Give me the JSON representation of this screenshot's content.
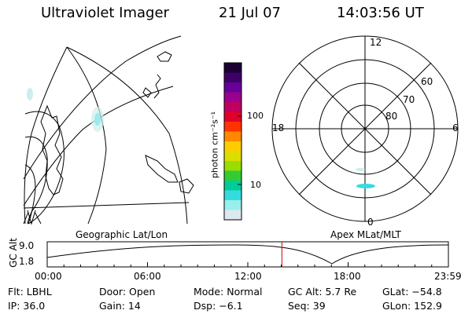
{
  "header": {
    "title": "Ultraviolet Imager",
    "date": "21 Jul 07",
    "time": "14:03:56 UT"
  },
  "geo_map": {
    "label": "Geographic Lat/Lon"
  },
  "colorbar": {
    "unit_label": "photon cm⁻²s⁻¹",
    "ticks": [
      "100",
      "10"
    ],
    "colors": [
      "#1a0033",
      "#3d0066",
      "#660099",
      "#99008c",
      "#c00060",
      "#e0002a",
      "#ff3300",
      "#ff8800",
      "#ffcc00",
      "#dddd00",
      "#99dd00",
      "#33cc33",
      "#00cc99",
      "#33dddd",
      "#99eeee",
      "#dde8ee"
    ]
  },
  "polar": {
    "label": "Apex MLat/MLT",
    "mlt_labels": {
      "top": "12",
      "left": "18",
      "right": "6",
      "bottom": "0"
    },
    "lat_labels": [
      "60",
      "70",
      "80"
    ]
  },
  "altitude": {
    "axis_label": "GC Alt",
    "ymax": "9.0",
    "ymin": "1.8",
    "time_ticks": [
      "00:00",
      "06:00",
      "12:00",
      "18:00",
      "23:59"
    ],
    "current_time_fraction": 0.585,
    "marker_color": "#cc0000"
  },
  "info": [
    {
      "label": "Flt: LBHL"
    },
    {
      "label": "Door: Open"
    },
    {
      "label": "Mode: Normal"
    },
    {
      "label": "GC Alt: 5.7 Re"
    },
    {
      "label": "GLat: −54.8"
    },
    {
      "label": "IP: 36.0"
    },
    {
      "label": "Gain: 14"
    },
    {
      "label": "Dsp:    −6.1"
    },
    {
      "label": "Seq: 39"
    },
    {
      "label": "GLon: 152.9"
    }
  ]
}
